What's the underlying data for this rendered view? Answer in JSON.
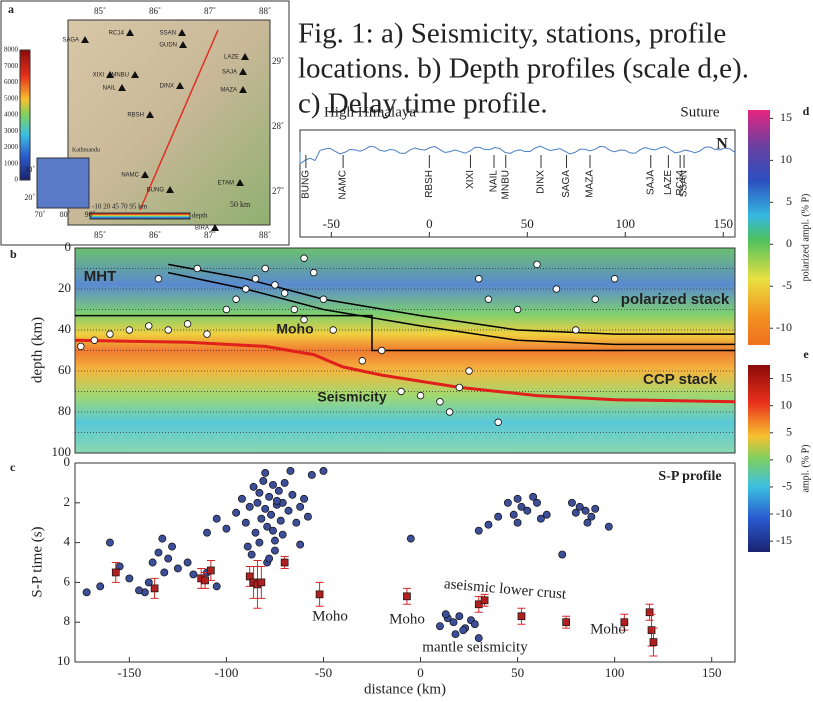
{
  "caption": [
    "Fig. 1: a) Seismicity, stations, profile",
    "locations. b) Depth profiles (scale d,e).",
    "c) Delay time profile."
  ],
  "map": {
    "label": "a",
    "lon_ticks": [
      {
        "value": 85,
        "label": "85˚"
      },
      {
        "value": 86,
        "label": "86˚"
      },
      {
        "value": 87,
        "label": "87˚"
      },
      {
        "value": 88,
        "label": "88˚"
      }
    ],
    "lat_ticks": [
      {
        "value": 29,
        "label": "29˚"
      },
      {
        "value": 28,
        "label": "28˚"
      },
      {
        "value": 27,
        "label": "27˚"
      }
    ],
    "elevation_ticks": [
      0,
      1000,
      2000,
      3000,
      4000,
      5000,
      6000,
      7000,
      8000
    ],
    "inset_lon": [
      {
        "value": 70,
        "label": "70˚"
      },
      {
        "value": 80,
        "label": "80˚"
      },
      {
        "value": 90,
        "label": "90˚"
      }
    ],
    "inset_lat": [
      {
        "value": 30,
        "label": "30˚"
      },
      {
        "value": 20,
        "label": "20˚"
      }
    ],
    "depth_scale": "-10  20  45  70  95 km",
    "depth_label": "depth",
    "scale_bar": "50 km",
    "city": "Kathmandu",
    "stations": [
      "SAGA",
      "RC14",
      "SSAN",
      "GUDN",
      "LAZE",
      "SAJA",
      "XIXI",
      "MNBU",
      "NAIL",
      "DINX",
      "MAZA",
      "RBSH",
      "NAMC",
      "BUNG",
      "ETAM",
      "BIRA"
    ]
  },
  "chart_data": [
    {
      "type": "profile",
      "xlim": [
        -66,
        156
      ],
      "xticks": [
        -50,
        0,
        50,
        100,
        150
      ],
      "annotations": [
        "High Himalaya",
        "Suture",
        "N"
      ],
      "panel": "d",
      "stations": {
        "names": [
          "BUNG",
          "NAMC",
          "RBSH",
          "XIXI",
          "NAIL",
          "MNBU",
          "DINX",
          "SAGA",
          "MAZA",
          "SAJA",
          "LAZE",
          "RC14",
          "SSAN"
        ],
        "x": [
          -63,
          -44,
          0,
          21,
          33,
          39,
          57,
          70,
          82,
          113,
          122,
          128,
          130
        ]
      },
      "color": "#4a7fc4"
    },
    {
      "type": "section",
      "label": "b",
      "xlim": [
        -178,
        162
      ],
      "ylim": [
        0,
        100
      ],
      "y_inverted": true,
      "yticks": [
        0,
        20,
        40,
        60,
        80,
        100
      ],
      "minor_grid": [
        10,
        30,
        50,
        70,
        90
      ],
      "ylabel": "depth (km)",
      "annotations": [
        "MHT",
        "Moho",
        "Seismicity",
        "polarized stack",
        "CCP stack"
      ],
      "lines": [
        {
          "color": "#e0201a",
          "x": [
            -178,
            -120,
            -80,
            -55,
            -40,
            -20,
            0,
            20,
            40,
            60,
            80,
            100,
            162
          ],
          "values": [
            45,
            46,
            48,
            52,
            58,
            62,
            65,
            68,
            70,
            72,
            73,
            74,
            75
          ]
        },
        {
          "color": "#000000",
          "x": [
            -130,
            -90,
            -50,
            0,
            50,
            100,
            162
          ],
          "values": [
            8,
            15,
            25,
            33,
            40,
            42,
            42
          ]
        },
        {
          "color": "#000000",
          "x": [
            -130,
            -90,
            -50,
            0,
            50,
            100,
            162
          ],
          "values": [
            12,
            20,
            30,
            38,
            45,
            47,
            47
          ]
        },
        {
          "color": "#000000",
          "x": [
            -178,
            -25,
            -25,
            162
          ],
          "values": [
            33,
            33,
            50,
            50
          ]
        }
      ],
      "points": {
        "color": "#ffffff",
        "x": [
          -175,
          -168,
          -160,
          -150,
          -140,
          -130,
          -120,
          -110,
          -100,
          -95,
          -90,
          -85,
          -80,
          -75,
          -70,
          -65,
          -60,
          -55,
          -50,
          -45,
          -30,
          -20,
          -10,
          0,
          10,
          15,
          20,
          25,
          30,
          35,
          40,
          50,
          60,
          70,
          80,
          90,
          100,
          -135,
          -115,
          -60
        ],
        "values": [
          48,
          45,
          42,
          40,
          38,
          40,
          37,
          42,
          30,
          25,
          20,
          15,
          10,
          18,
          22,
          30,
          35,
          12,
          25,
          40,
          55,
          50,
          70,
          72,
          75,
          80,
          68,
          60,
          15,
          25,
          85,
          30,
          8,
          20,
          40,
          25,
          15,
          15,
          10,
          5
        ]
      }
    },
    {
      "type": "scatter",
      "label": "c",
      "xlim": [
        -178,
        162
      ],
      "ylim": [
        0,
        10
      ],
      "y_inverted": true,
      "xticks": [
        -150,
        -100,
        -50,
        0,
        50,
        100,
        150
      ],
      "yticks": [
        0,
        2,
        4,
        6,
        8,
        10
      ],
      "xlabel": "distance (km)",
      "ylabel": "S-P time (s)",
      "annotations": [
        "S-P profile",
        "Moho",
        "Moho",
        "Moho",
        "aseismic lower crust",
        "mantle seismicity"
      ],
      "series": [
        {
          "color": "#3d4e99",
          "x": [
            -95,
            -92,
            -90,
            -88,
            -86,
            -85,
            -84,
            -83,
            -82,
            -81,
            -80,
            -79,
            -78,
            -77,
            -76,
            -75,
            -74,
            -73,
            -72,
            -71,
            -70,
            -68,
            -66,
            -64,
            -62,
            -60,
            -58,
            -56,
            -89,
            -87,
            -83,
            -79,
            -75,
            -71,
            -67,
            -80,
            -78,
            -76,
            -74,
            -100,
            -105,
            -110,
            -62,
            -50,
            -135,
            -138,
            -132,
            -140,
            -130,
            -128,
            -142,
            -150,
            -155,
            -160,
            -165,
            -172,
            -120,
            -117,
            -145,
            -125,
            -133,
            -110,
            -105,
            45,
            48,
            50,
            52,
            55,
            58,
            60,
            62,
            65,
            50,
            40,
            35,
            30,
            78,
            80,
            82,
            85,
            88,
            90,
            86,
            97,
            73,
            10,
            14,
            17,
            20,
            23,
            26,
            28,
            18,
            22,
            13,
            30,
            -5
          ],
          "values": [
            2.5,
            1.8,
            3.0,
            2.2,
            1.2,
            3.5,
            2.0,
            1.5,
            2.8,
            0.9,
            2.3,
            3.2,
            1.7,
            2.6,
            1.1,
            3.9,
            2.1,
            1.4,
            2.9,
            2.0,
            1.0,
            2.4,
            1.6,
            3.0,
            2.2,
            1.8,
            2.7,
            0.6,
            4.2,
            4.6,
            4.0,
            5.0,
            4.4,
            3.6,
            0.4,
            0.5,
            4.8,
            3.4,
            1.9,
            3.3,
            2.8,
            3.5,
            4.1,
            0.4,
            4.5,
            5.0,
            5.5,
            6.0,
            4.8,
            4.2,
            6.5,
            5.8,
            5.2,
            4.0,
            6.2,
            6.5,
            5.0,
            5.6,
            6.4,
            5.3,
            3.8,
            5.5,
            6.2,
            2.0,
            2.6,
            1.8,
            2.2,
            2.4,
            1.7,
            2.0,
            2.8,
            2.6,
            3.0,
            2.7,
            3.1,
            3.4,
            2.0,
            2.5,
            2.2,
            2.4,
            2.7,
            2.3,
            3.0,
            3.2,
            4.6,
            8.2,
            7.8,
            8.0,
            7.7,
            8.3,
            7.9,
            8.1,
            8.6,
            8.4,
            7.6,
            8.8,
            3.8
          ]
        },
        {
          "color": "#d62728",
          "x": [
            -157,
            -137,
            -113,
            -111,
            -108,
            -88,
            -86,
            -84,
            -82,
            -70,
            -52,
            -7,
            30,
            33,
            52,
            75,
            105,
            118,
            119,
            120
          ],
          "values": [
            5.5,
            6.3,
            5.8,
            5.9,
            5.4,
            5.7,
            6.0,
            6.1,
            6.0,
            5.0,
            6.6,
            6.7,
            7.1,
            6.9,
            7.7,
            8.0,
            8.0,
            7.5,
            8.4,
            9.0
          ],
          "errors": [
            0.5,
            0.5,
            0.5,
            0.4,
            0.5,
            0.5,
            0.8,
            1.2,
            0.8,
            0.3,
            0.6,
            0.4,
            0.4,
            0.3,
            0.4,
            0.3,
            0.4,
            0.4,
            0.8,
            0.7
          ]
        }
      ]
    },
    {
      "type": "colorbar",
      "label": "d",
      "ylim": [
        -12,
        16
      ],
      "yticks": [
        15,
        10,
        5,
        0,
        -5,
        -10
      ],
      "ylabel": "polarized ampl. (% P)"
    },
    {
      "type": "colorbar",
      "label": "e",
      "ylim": [
        -17,
        17.5
      ],
      "yticks": [
        15,
        10,
        5,
        0,
        -5,
        -10,
        -15
      ],
      "ylabel": "ampl. (% P)"
    }
  ]
}
